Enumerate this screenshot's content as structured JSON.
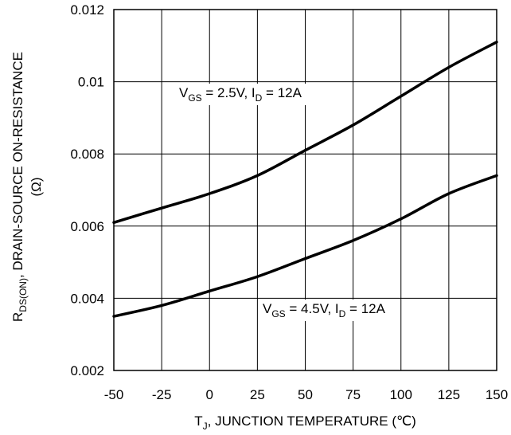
{
  "chart_data": {
    "type": "line",
    "title": "",
    "xlabel": {
      "main": "T",
      "sub": "J",
      "rest": ", JUNCTION TEMPERATURE (℃)"
    },
    "ylabel": {
      "line1_main": "R",
      "line1_sub": "DS(ON)",
      "line1_rest": ", DRAIN-SOURCE ON-RESISTANCE",
      "line2": "(Ω)"
    },
    "xlim": [
      -50,
      150
    ],
    "ylim": [
      0.002,
      0.012
    ],
    "xticks": [
      -50,
      -25,
      0,
      25,
      50,
      75,
      100,
      125,
      150
    ],
    "xtick_labels": [
      "-50",
      "-25",
      "0",
      "25",
      "50",
      "75",
      "100",
      "125",
      "150"
    ],
    "yticks": [
      0.002,
      0.004,
      0.006,
      0.008,
      0.01,
      0.012
    ],
    "ytick_labels": [
      "0.002",
      "0.004",
      "0.006",
      "0.008",
      "0.01",
      "0.012"
    ],
    "grid": true,
    "series": [
      {
        "label": {
          "v": "V",
          "vsub": "GS",
          "mid": " = 2.5V, I",
          "isub": "D",
          "end": " = 12A"
        },
        "color": "#000000",
        "x": [
          -50,
          -25,
          0,
          25,
          50,
          75,
          100,
          125,
          150
        ],
        "y": [
          0.0061,
          0.0065,
          0.0069,
          0.0074,
          0.0081,
          0.0088,
          0.0096,
          0.0104,
          0.0111
        ]
      },
      {
        "label": {
          "v": "V",
          "vsub": "GS",
          "mid": " = 4.5V, I",
          "isub": "D",
          "end": " = 12A"
        },
        "color": "#000000",
        "x": [
          -50,
          -25,
          0,
          25,
          50,
          75,
          100,
          125,
          150
        ],
        "y": [
          0.0035,
          0.0038,
          0.0042,
          0.0046,
          0.0051,
          0.0056,
          0.0062,
          0.0069,
          0.0074
        ]
      }
    ]
  }
}
